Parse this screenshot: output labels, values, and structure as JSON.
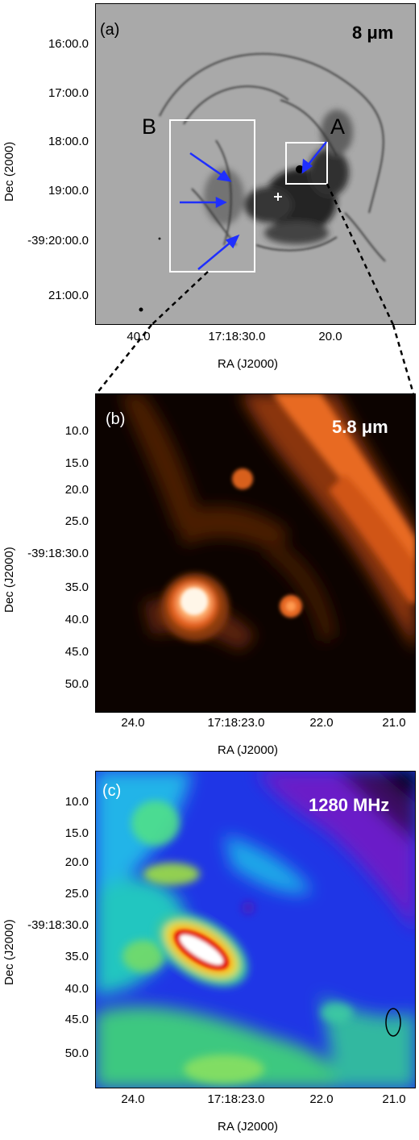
{
  "panel_a": {
    "label": "(a)",
    "wavelength": "8 μm",
    "box_a_label": "A",
    "box_b_label": "B",
    "xlabel": "RA (J2000)",
    "ylabel": "Dec (2000)",
    "x_ticks": [
      "40.0",
      "17:18:30.0",
      "20.0"
    ],
    "y_ticks": [
      "16:00.0",
      "17:00.0",
      "18:00.0",
      "19:00.0",
      "-39:20:00.0",
      "21:00.0"
    ]
  },
  "panel_b": {
    "label": "(b)",
    "wavelength": "5.8 μm",
    "xlabel": "RA (J2000)",
    "ylabel": "Dec (J2000)",
    "x_ticks": [
      "24.0",
      "17:18:23.0",
      "22.0",
      "21.0"
    ],
    "y_ticks": [
      "10.0",
      "15.0",
      "20.0",
      "25.0",
      "-39:18:30.0",
      "35.0",
      "40.0",
      "45.0",
      "50.0"
    ]
  },
  "panel_c": {
    "label": "(c)",
    "frequency": "1280 MHz",
    "xlabel": "RA (J2000)",
    "ylabel": "Dec (J2000)",
    "x_ticks": [
      "24.0",
      "17:18:23.0",
      "22.0",
      "21.0"
    ],
    "y_ticks": [
      "10.0",
      "15.0",
      "20.0",
      "25.0",
      "-39:18:30.0",
      "35.0",
      "40.0",
      "45.0",
      "50.0"
    ]
  },
  "colors": {
    "arrow": "#1f2fff",
    "box": "#ffffff",
    "grey_bg": "#a8a8a8"
  }
}
